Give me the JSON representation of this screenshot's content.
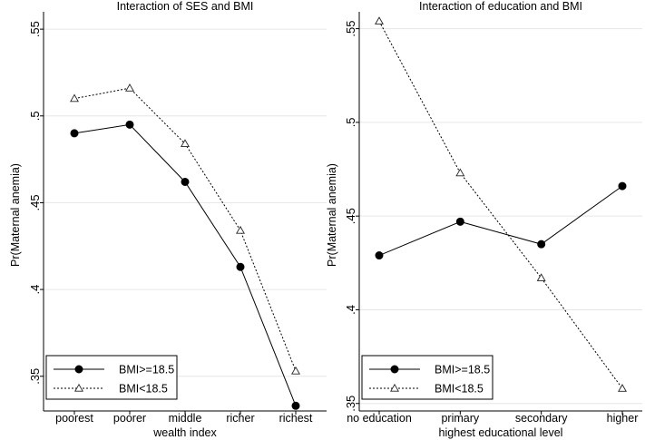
{
  "chart_data": [
    {
      "type": "line",
      "title": "Interaction of SES and BMI",
      "xlabel": "wealth index",
      "ylabel": "Pr(Maternal anemia)",
      "categories": [
        "poorest",
        "poorer",
        "middle",
        "richer",
        "richest"
      ],
      "ylim": [
        0.33,
        0.56
      ],
      "yticks": [
        0.35,
        0.4,
        0.45,
        0.5,
        0.55
      ],
      "ytick_labels": [
        ".35",
        ".4",
        ".45",
        ".5",
        ".55"
      ],
      "grid": "horizontal",
      "legend_position": "bottom-left",
      "series": [
        {
          "name": "BMI>=18.5",
          "style": "solid",
          "marker": "filled-circle",
          "values": [
            0.49,
            0.495,
            0.462,
            0.413,
            0.333
          ]
        },
        {
          "name": "BMI<18.5",
          "style": "dotted",
          "marker": "hollow-triangle",
          "values": [
            0.51,
            0.516,
            0.484,
            0.434,
            0.353
          ]
        }
      ]
    },
    {
      "type": "line",
      "title": "Interaction of education and BMI",
      "xlabel": "highest educational level",
      "ylabel": "Pr(Maternal anemia)",
      "categories": [
        "no education",
        "primary",
        "secondary",
        "higher"
      ],
      "ylim": [
        0.346,
        0.559
      ],
      "yticks": [
        0.35,
        0.4,
        0.45,
        0.5,
        0.55
      ],
      "ytick_labels": [
        ".35",
        ".4",
        ".45",
        ".5",
        ".55"
      ],
      "grid": "horizontal",
      "legend_position": "bottom-left",
      "series": [
        {
          "name": "BMI>=18.5",
          "style": "solid",
          "marker": "filled-circle",
          "values": [
            0.429,
            0.447,
            0.435,
            0.466
          ]
        },
        {
          "name": "BMI<18.5",
          "style": "dotted",
          "marker": "hollow-triangle",
          "values": [
            0.554,
            0.473,
            0.417,
            0.358
          ]
        }
      ]
    }
  ]
}
